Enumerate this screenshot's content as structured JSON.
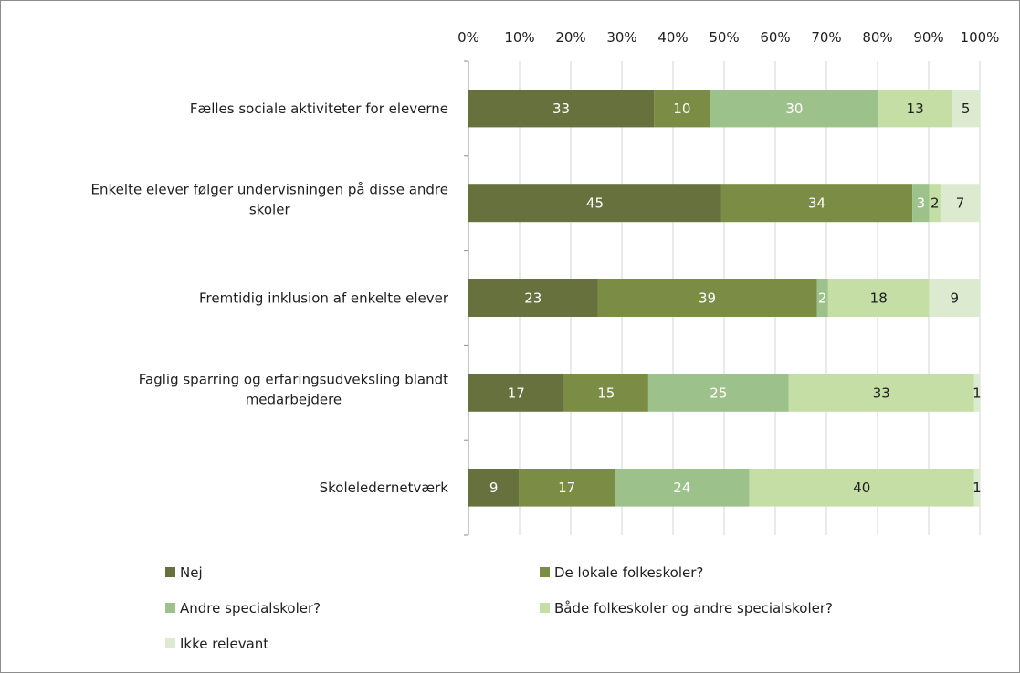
{
  "chart_data": {
    "type": "bar",
    "orientation": "horizontal",
    "stacked": "percent",
    "categories": [
      "Fælles sociale aktiviteter for eleverne",
      "Enkelte elever følger undervisningen på disse andre skoler",
      "Fremtidig inklusion af enkelte elever",
      "Faglig sparring og erfaringsudveksling blandt medarbejdere",
      "Skoleledernetværk"
    ],
    "category_lines": [
      [
        "Fælles sociale aktiviteter for eleverne"
      ],
      [
        "Enkelte elever følger undervisningen på disse andre",
        "skoler"
      ],
      [
        "Fremtidig inklusion af enkelte elever"
      ],
      [
        "Faglig sparring og erfaringsudveksling blandt",
        "medarbejdere"
      ],
      [
        "Skoleledernetværk"
      ]
    ],
    "series": [
      {
        "name": "Nej",
        "values": [
          33,
          45,
          23,
          17,
          9
        ],
        "color": "#66713d"
      },
      {
        "name": "De lokale folkeskoler?",
        "values": [
          10,
          34,
          39,
          15,
          17
        ],
        "color": "#7b8c45"
      },
      {
        "name": "Andre specialskoler?",
        "values": [
          30,
          3,
          2,
          25,
          24
        ],
        "color": "#9cc18a"
      },
      {
        "name": "Både folkeskoler og andre specialskoler?",
        "values": [
          13,
          2,
          18,
          33,
          40
        ],
        "color": "#c4dea6"
      },
      {
        "name": "Ikke relevant",
        "values": [
          5,
          7,
          9,
          1,
          1
        ],
        "color": "#dcebcf"
      }
    ],
    "xaxis": {
      "position": "top",
      "range": [
        0,
        100
      ],
      "ticks": [
        "0%",
        "10%",
        "20%",
        "30%",
        "40%",
        "50%",
        "60%",
        "70%",
        "80%",
        "90%",
        "100%"
      ]
    },
    "grid": true,
    "legend_position": "bottom"
  }
}
